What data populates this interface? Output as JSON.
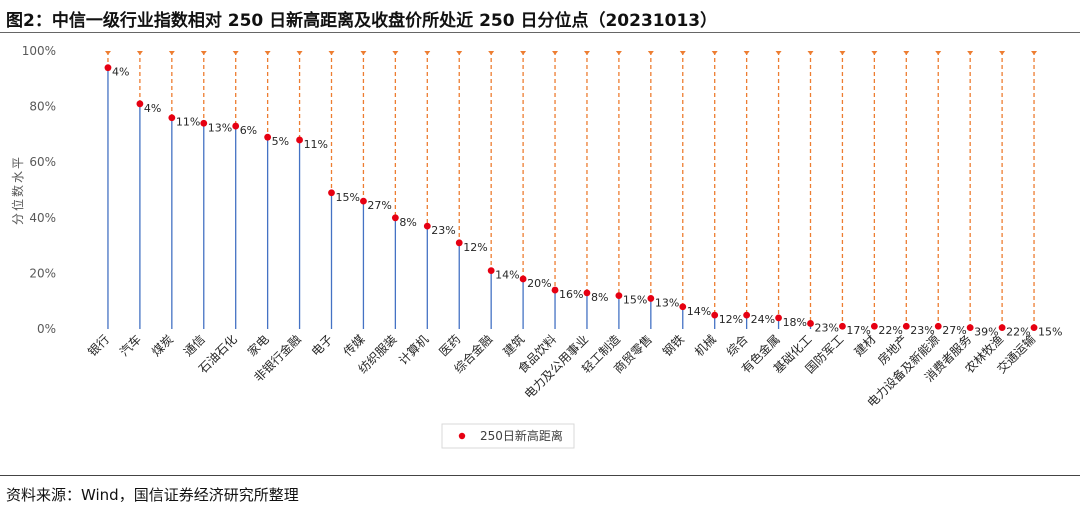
{
  "title": "图2：中信一级行业指数相对 250 日新高距离及收盘价所处近 250 日分位点（20231013）",
  "source": "资料来源：Wind，国信证券经济研究所整理",
  "colors": {
    "stem": "#4472c4",
    "gap": "#ed7d31",
    "dot": "#e60012",
    "axis_text": "#595959"
  },
  "chart_data": {
    "type": "scatter",
    "title": "",
    "xlabel": "",
    "ylabel": "分位数水平",
    "ylim": [
      0,
      100
    ],
    "yticks": [
      "0%",
      "20%",
      "40%",
      "60%",
      "80%",
      "100%"
    ],
    "legend": {
      "position": "bottom",
      "entries": [
        "250日新高距离"
      ]
    },
    "categories": [
      "银行",
      "汽车",
      "煤炭",
      "通信",
      "石油石化",
      "家电",
      "非银行金融",
      "电子",
      "传媒",
      "纺织服装",
      "计算机",
      "医药",
      "综合金融",
      "建筑",
      "食品饮料",
      "电力及公用事业",
      "轻工制造",
      "商贸零售",
      "钢铁",
      "机械",
      "综合",
      "有色金属",
      "基础化工",
      "国防军工",
      "建材",
      "房地产",
      "电力设备及新能源",
      "消费者服务",
      "农林牧渔",
      "交通运输"
    ],
    "series": [
      {
        "name": "",
        "values": [
          94,
          81,
          76,
          74,
          73,
          69,
          68,
          49,
          46,
          40,
          37,
          31,
          21,
          18,
          14,
          13,
          12,
          11,
          8,
          5,
          5,
          4,
          2,
          1,
          1,
          1,
          1,
          0.5,
          0.5,
          0.5
        ]
      },
      {
        "name": "250日新高距离",
        "values": [
          4,
          4,
          11,
          13,
          6,
          5,
          11,
          15,
          27,
          8,
          23,
          12,
          14,
          20,
          16,
          8,
          15,
          13,
          14,
          12,
          24,
          18,
          23,
          17,
          22,
          23,
          27,
          39,
          22,
          15
        ]
      }
    ]
  }
}
